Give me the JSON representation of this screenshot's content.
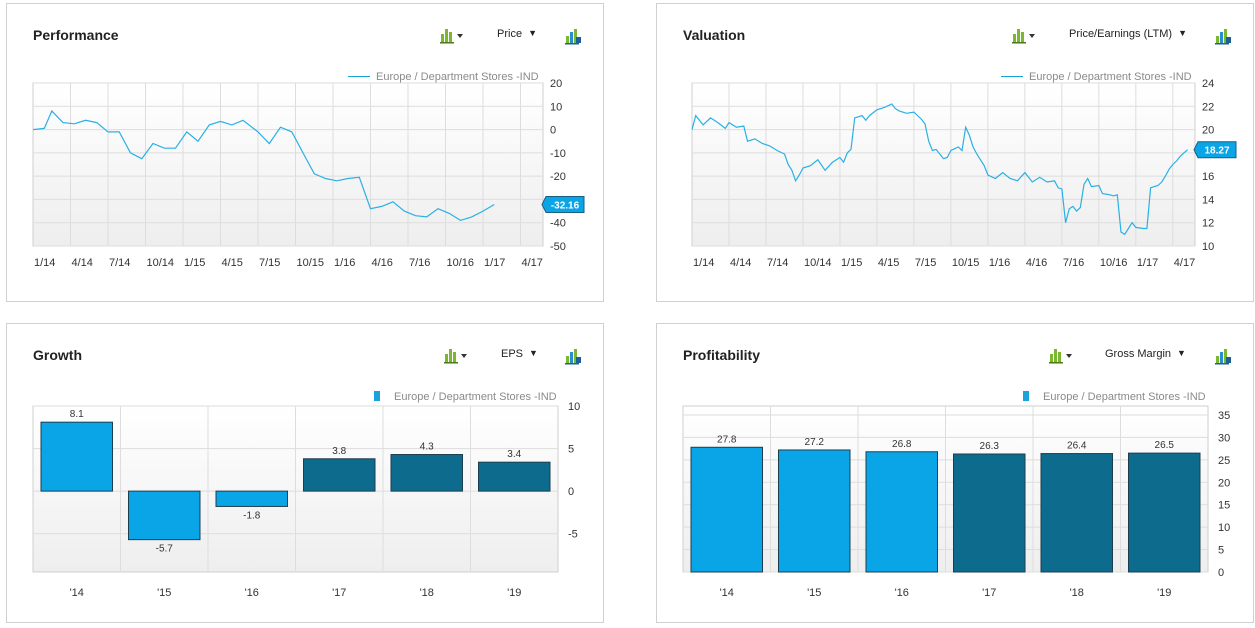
{
  "colors": {
    "series_light": "#0aa5e6",
    "series_dark": "#0d6b8e",
    "line": "#2ab0e4",
    "grid": "#dddddd",
    "plot_bg_top": "#ffffff",
    "plot_bg_bottom": "#eeeeee"
  },
  "icons": {
    "chart_type": "bar-chart-icon",
    "dropdown": "chevron-down-icon",
    "export": "chart-export-icon"
  },
  "panels": {
    "performance": {
      "title": "Performance",
      "metric": "Price",
      "legend": "Europe / Department Stores -IND"
    },
    "valuation": {
      "title": "Valuation",
      "metric": "Price/Earnings (LTM)",
      "legend": "Europe / Department Stores -IND"
    },
    "growth": {
      "title": "Growth",
      "metric": "EPS",
      "legend": "Europe / Department Stores -IND"
    },
    "profitability": {
      "title": "Profitability",
      "metric": "Gross Margin",
      "legend": "Europe / Department Stores -IND"
    }
  },
  "chart_data": [
    {
      "id": "performance",
      "type": "line",
      "title": "Performance",
      "series_name": "Europe / Department Stores -IND",
      "ylim": [
        -50,
        20
      ],
      "yticks": [
        20,
        10,
        0,
        -10,
        -20,
        -30,
        -40,
        -50
      ],
      "xtick_labels": [
        "1/14",
        "4/14",
        "7/14",
        "10/14",
        "1/15",
        "4/15",
        "7/15",
        "10/15",
        "1/16",
        "4/16",
        "7/16",
        "10/16",
        "1/17",
        "4/17"
      ],
      "x_start": 0,
      "x_end": 13.6,
      "points": [
        [
          0,
          0
        ],
        [
          0.3,
          0.5
        ],
        [
          0.5,
          8
        ],
        [
          0.8,
          3
        ],
        [
          1.1,
          2.5
        ],
        [
          1.4,
          4
        ],
        [
          1.7,
          3
        ],
        [
          2.0,
          -1
        ],
        [
          2.3,
          -1
        ],
        [
          2.6,
          -10
        ],
        [
          2.9,
          -12.5
        ],
        [
          3.2,
          -6
        ],
        [
          3.5,
          -8
        ],
        [
          3.8,
          -8
        ],
        [
          4.1,
          -1
        ],
        [
          4.4,
          -5
        ],
        [
          4.7,
          2
        ],
        [
          5.0,
          3.5
        ],
        [
          5.3,
          2
        ],
        [
          5.6,
          4
        ],
        [
          6.0,
          -1
        ],
        [
          6.3,
          -6
        ],
        [
          6.6,
          1
        ],
        [
          6.9,
          -1
        ],
        [
          7.2,
          -10
        ],
        [
          7.5,
          -19
        ],
        [
          7.8,
          -21
        ],
        [
          8.1,
          -22
        ],
        [
          8.4,
          -21
        ],
        [
          8.7,
          -20.5
        ],
        [
          9.0,
          -34
        ],
        [
          9.3,
          -33
        ],
        [
          9.6,
          -31
        ],
        [
          9.9,
          -35
        ],
        [
          10.2,
          -37
        ],
        [
          10.5,
          -37.5
        ],
        [
          10.8,
          -34
        ],
        [
          11.1,
          -36
        ],
        [
          11.4,
          -39
        ],
        [
          11.7,
          -37.5
        ],
        [
          12.0,
          -35
        ],
        [
          12.3,
          -32.16
        ]
      ],
      "last_value": -32.16,
      "last_label": "-32.16"
    },
    {
      "id": "valuation",
      "type": "line",
      "title": "Valuation",
      "subtitle": "Price/Earnings (LTM)",
      "series_name": "Europe / Department Stores -IND",
      "ylim": [
        10,
        24
      ],
      "yticks": [
        24,
        22,
        20,
        18,
        16,
        14,
        12,
        10
      ],
      "xtick_labels": [
        "1/14",
        "4/14",
        "7/14",
        "10/14",
        "1/15",
        "4/15",
        "7/15",
        "10/15",
        "1/16",
        "4/16",
        "7/16",
        "10/16",
        "1/17",
        "4/17"
      ],
      "x_start": 0,
      "x_end": 13.6,
      "points": [
        [
          0,
          20
        ],
        [
          0.1,
          21.2
        ],
        [
          0.3,
          20.4
        ],
        [
          0.5,
          21
        ],
        [
          0.7,
          20.6
        ],
        [
          0.9,
          20.1
        ],
        [
          1.0,
          20.6
        ],
        [
          1.2,
          20.2
        ],
        [
          1.4,
          20.3
        ],
        [
          1.5,
          19
        ],
        [
          1.7,
          19.2
        ],
        [
          1.9,
          18.8
        ],
        [
          2.1,
          18.6
        ],
        [
          2.3,
          18.2
        ],
        [
          2.5,
          17.9
        ],
        [
          2.6,
          17
        ],
        [
          2.7,
          16.5
        ],
        [
          2.8,
          15.6
        ],
        [
          2.9,
          16.1
        ],
        [
          3.0,
          16.7
        ],
        [
          3.2,
          16.9
        ],
        [
          3.4,
          17.4
        ],
        [
          3.6,
          16.5
        ],
        [
          3.8,
          17.2
        ],
        [
          4.0,
          17.6
        ],
        [
          4.1,
          17.2
        ],
        [
          4.2,
          18
        ],
        [
          4.3,
          18.3
        ],
        [
          4.4,
          21
        ],
        [
          4.6,
          21.2
        ],
        [
          4.7,
          20.8
        ],
        [
          4.8,
          21.2
        ],
        [
          5.0,
          21.7
        ],
        [
          5.2,
          21.9
        ],
        [
          5.4,
          22.2
        ],
        [
          5.5,
          21.8
        ],
        [
          5.6,
          21.6
        ],
        [
          5.8,
          21.4
        ],
        [
          6.0,
          21.5
        ],
        [
          6.2,
          20.9
        ],
        [
          6.3,
          20.5
        ],
        [
          6.4,
          19
        ],
        [
          6.5,
          18.2
        ],
        [
          6.6,
          18.3
        ],
        [
          6.8,
          17.5
        ],
        [
          6.9,
          17.6
        ],
        [
          7.0,
          18.2
        ],
        [
          7.2,
          18.5
        ],
        [
          7.3,
          18.2
        ],
        [
          7.4,
          20.2
        ],
        [
          7.5,
          19.5
        ],
        [
          7.6,
          18.5
        ],
        [
          7.7,
          17.9
        ],
        [
          7.8,
          17.4
        ],
        [
          7.9,
          16.9
        ],
        [
          8.0,
          16.1
        ],
        [
          8.2,
          15.8
        ],
        [
          8.4,
          16.3
        ],
        [
          8.6,
          15.8
        ],
        [
          8.8,
          15.6
        ],
        [
          9.0,
          16.3
        ],
        [
          9.2,
          15.5
        ],
        [
          9.4,
          15.9
        ],
        [
          9.6,
          15.5
        ],
        [
          9.8,
          15.6
        ],
        [
          9.9,
          15
        ],
        [
          10.0,
          14.9
        ],
        [
          10.1,
          12
        ],
        [
          10.2,
          13.2
        ],
        [
          10.3,
          13.4
        ],
        [
          10.4,
          13
        ],
        [
          10.5,
          13.3
        ],
        [
          10.6,
          15.3
        ],
        [
          10.7,
          15.8
        ],
        [
          10.8,
          15.1
        ],
        [
          11.0,
          15.2
        ],
        [
          11.1,
          14.5
        ],
        [
          11.3,
          14.4
        ],
        [
          11.4,
          14.3
        ],
        [
          11.5,
          14.4
        ],
        [
          11.6,
          11.2
        ],
        [
          11.7,
          11
        ],
        [
          11.8,
          11.5
        ],
        [
          11.9,
          12
        ],
        [
          12.0,
          11.6
        ],
        [
          12.2,
          11.5
        ],
        [
          12.3,
          11.5
        ],
        [
          12.4,
          15
        ],
        [
          12.5,
          15.1
        ],
        [
          12.6,
          15.2
        ],
        [
          12.7,
          15.5
        ],
        [
          12.8,
          16
        ],
        [
          12.9,
          16.6
        ],
        [
          13.0,
          17
        ],
        [
          13.1,
          17.3
        ],
        [
          13.2,
          17.7
        ],
        [
          13.3,
          18
        ],
        [
          13.4,
          18.27
        ]
      ],
      "last_value": 18.27,
      "last_label": "18.27"
    },
    {
      "id": "growth",
      "type": "bar",
      "title": "Growth",
      "subtitle": "EPS",
      "categories": [
        "'14",
        "'15",
        "'16",
        "'17",
        "'18",
        "'19"
      ],
      "values": [
        8.1,
        -5.7,
        -1.8,
        3.8,
        4.3,
        3.4
      ],
      "labels": [
        "8.1",
        "-5.7",
        "-1.8",
        "3.8",
        "4.3",
        "3.4"
      ],
      "estimate": [
        false,
        false,
        false,
        true,
        true,
        true
      ],
      "ylim": [
        -9.5,
        10
      ],
      "yticks": [
        10,
        5,
        0,
        -5
      ]
    },
    {
      "id": "profitability",
      "type": "bar",
      "title": "Profitability",
      "subtitle": "Gross Margin",
      "categories": [
        "'14",
        "'15",
        "'16",
        "'17",
        "'18",
        "'19"
      ],
      "values": [
        27.8,
        27.2,
        26.8,
        26.3,
        26.4,
        26.5
      ],
      "labels": [
        "27.8",
        "27.2",
        "26.8",
        "26.3",
        "26.4",
        "26.5"
      ],
      "estimate": [
        false,
        false,
        false,
        true,
        true,
        true
      ],
      "ylim": [
        0,
        37
      ],
      "yticks": [
        35,
        30,
        25,
        20,
        15,
        10,
        5,
        0
      ]
    }
  ]
}
